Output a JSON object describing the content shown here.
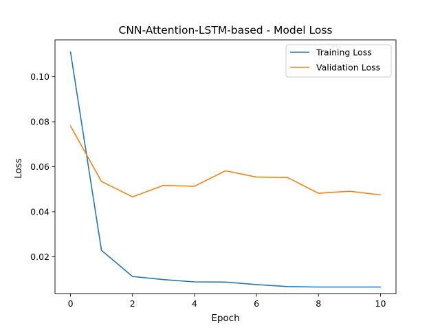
{
  "chart_data": {
    "type": "line",
    "title": "CNN-Attention-LSTM-based - Model Loss",
    "xlabel": "Epoch",
    "ylabel": "Loss",
    "x": [
      0,
      1,
      2,
      3,
      4,
      5,
      6,
      7,
      8,
      9,
      10
    ],
    "xlim": [
      -0.5,
      10.5
    ],
    "ylim": [
      0.0036,
      0.1164
    ],
    "xticks": [
      0,
      2,
      4,
      6,
      8,
      10
    ],
    "xtick_labels": [
      "0",
      "2",
      "4",
      "6",
      "8",
      "10"
    ],
    "yticks": [
      0.02,
      0.04,
      0.06,
      0.08,
      0.1
    ],
    "ytick_labels": [
      "0.02",
      "0.04",
      "0.06",
      "0.08",
      "0.10"
    ],
    "grid": false,
    "legend_position": "upper right",
    "series": [
      {
        "name": "Training Loss",
        "color": "#1f77b4",
        "values": [
          0.111,
          0.0228,
          0.0112,
          0.0098,
          0.0088,
          0.0087,
          0.0076,
          0.0067,
          0.0065,
          0.0065,
          0.0065
        ]
      },
      {
        "name": "Validation Loss",
        "color": "#ff7f0e",
        "values": [
          0.0781,
          0.0534,
          0.0466,
          0.0517,
          0.0513,
          0.0582,
          0.0554,
          0.0552,
          0.0482,
          0.0491,
          0.0475
        ]
      }
    ]
  }
}
